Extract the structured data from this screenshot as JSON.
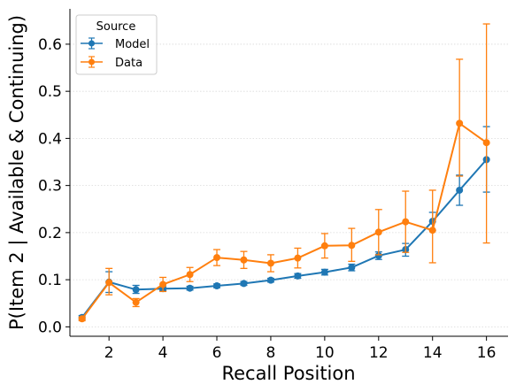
{
  "chart_data": {
    "type": "line",
    "xlabel": "Recall Position",
    "ylabel": "P(Item 2 | Available & Continuing)",
    "xlim": [
      0.55,
      16.8
    ],
    "ylim": [
      -0.02,
      0.675
    ],
    "xticks": [
      2,
      4,
      6,
      8,
      10,
      12,
      14,
      16
    ],
    "xtick_labels": [
      "2",
      "4",
      "6",
      "8",
      "10",
      "12",
      "14",
      "16"
    ],
    "yticks": [
      0.0,
      0.1,
      0.2,
      0.3,
      0.4,
      0.5,
      0.6
    ],
    "ytick_labels": [
      "0.0",
      "0.1",
      "0.2",
      "0.3",
      "0.4",
      "0.5",
      "0.6"
    ],
    "grid": "y-dotted",
    "legend": {
      "title": "Source",
      "placement": "top-left",
      "entries": [
        "Model",
        "Data"
      ]
    },
    "x": [
      1,
      2,
      3,
      4,
      5,
      6,
      7,
      8,
      9,
      10,
      11,
      12,
      13,
      14,
      15,
      16
    ],
    "series": [
      {
        "name": "Model",
        "color": "#1f77b4",
        "values": [
          0.02,
          0.095,
          0.079,
          0.081,
          0.082,
          0.087,
          0.092,
          0.099,
          0.108,
          0.116,
          0.126,
          0.151,
          0.164,
          0.224,
          0.29,
          0.355
        ],
        "err_low": [
          0.016,
          0.073,
          0.071,
          0.077,
          0.078,
          0.083,
          0.088,
          0.095,
          0.103,
          0.11,
          0.119,
          0.143,
          0.15,
          0.205,
          0.258,
          0.286
        ],
        "err_high": [
          0.024,
          0.117,
          0.088,
          0.085,
          0.086,
          0.091,
          0.096,
          0.103,
          0.113,
          0.122,
          0.133,
          0.159,
          0.177,
          0.243,
          0.322,
          0.425
        ]
      },
      {
        "name": "Data",
        "color": "#ff7f0e",
        "values": [
          0.017,
          0.094,
          0.052,
          0.09,
          0.111,
          0.147,
          0.142,
          0.135,
          0.146,
          0.172,
          0.173,
          0.201,
          0.223,
          0.205,
          0.432,
          0.391
        ],
        "err_low": [
          0.013,
          0.068,
          0.043,
          0.075,
          0.096,
          0.13,
          0.124,
          0.117,
          0.125,
          0.146,
          0.139,
          0.153,
          0.158,
          0.136,
          0.32,
          0.178
        ],
        "err_high": [
          0.021,
          0.124,
          0.06,
          0.105,
          0.126,
          0.164,
          0.16,
          0.153,
          0.167,
          0.198,
          0.209,
          0.249,
          0.288,
          0.29,
          0.568,
          0.643
        ]
      }
    ]
  }
}
